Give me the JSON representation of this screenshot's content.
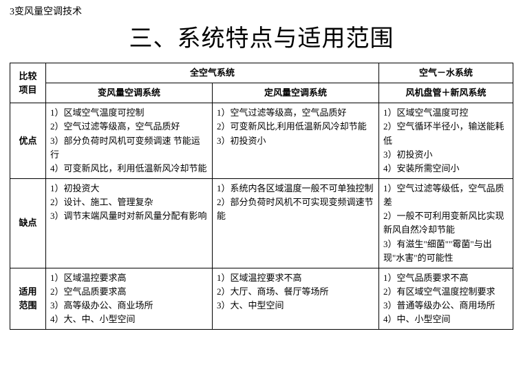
{
  "breadcrumb": "3变风量空调技术",
  "title": "三、系统特点与适用范围",
  "table": {
    "header": {
      "compare_label_l1": "比较",
      "compare_label_l2": "项目",
      "all_air_system": "全空气系统",
      "air_water_system": "空气－水系统",
      "vav_system": "变风量空调系统",
      "cav_system": "定风量空调系统",
      "fcu_system": "风机盘管＋新风系统"
    },
    "rows": [
      {
        "label": "优点",
        "vav": [
          "1）区域空气温度可控制",
          "2）空气过滤等级高，空气品质好",
          "3）部分负荷时风机可变频调速 节能运行",
          "4）可变新风比，利用低温新风冷却节能"
        ],
        "cav": [
          "1）空气过滤等级高，空气品质好",
          "2）可变新风比,利用低温新风冷却节能",
          "3）初投资小"
        ],
        "fcu": [
          "1）区域空气温度可控",
          "2）空气循环半径小，输送能耗低",
          "3）初投资小",
          "4）安装所需空间小"
        ]
      },
      {
        "label": "缺点",
        "vav": [
          "1）初投资大",
          "2）设计、施工、管理复杂",
          "3）调节末端风量时对新风量分配有影响"
        ],
        "cav": [
          "1）系统内各区域温度一般不可单独控制",
          "2）部分负荷时风机不可实现变频调速节能"
        ],
        "fcu": [
          "1）空气过滤等级低，空气品质差",
          "2）一般不可利用变新风比实现新风自然冷却节能",
          "3）有滋生\"细菌\"\"霉菌\"与出现\"水害\"的可能性"
        ]
      },
      {
        "label_l1": "适用",
        "label_l2": "范围",
        "vav": [
          "1）区域温控要求高",
          "2）空气品质要求高",
          "3）高等级办公、商业场所",
          "4）大、中、小型空间"
        ],
        "cav": [
          "1）区域温控要求不高",
          "2）大厅、商场、餐厅等场所",
          "3）大、中型空间"
        ],
        "fcu": [
          "1）空气品质要求不高",
          "2）有区域空气温度控制要求",
          "3）普通等级办公、商用场所",
          "4）中、小型空间"
        ]
      }
    ]
  },
  "styling": {
    "background_color": "#ffffff",
    "text_color": "#000000",
    "border_color": "#000000",
    "border_width": 1.5,
    "title_fontsize": 34,
    "breadcrumb_fontsize": 14,
    "cell_fontsize": 13,
    "font_family": "SimSun"
  }
}
